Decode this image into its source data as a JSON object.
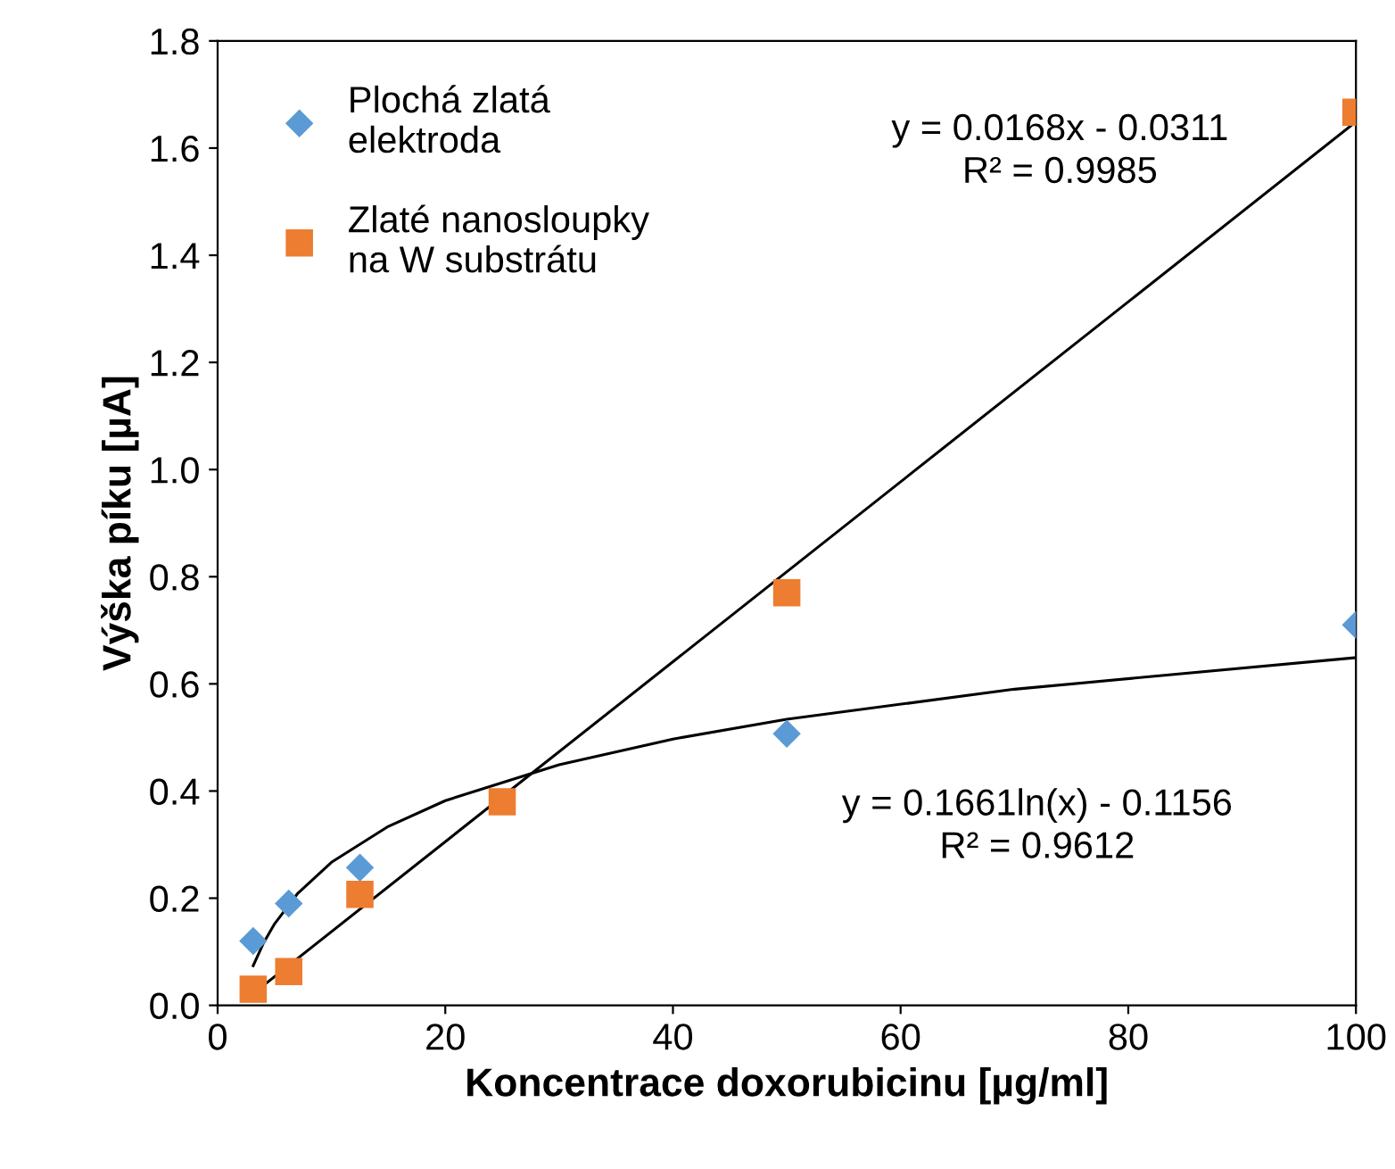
{
  "chart_data": {
    "type": "scatter",
    "xlabel": "Koncentrace doxorubicinu [µg/ml]",
    "ylabel": "Výška píku [µA]",
    "xlim": [
      0,
      100
    ],
    "xticks": [
      0,
      20,
      40,
      60,
      80,
      100
    ],
    "ylim": [
      0,
      1.8
    ],
    "yticks": [
      {
        "value": 0,
        "label": "0.0"
      },
      {
        "value": 0.2,
        "label": "0.2"
      },
      {
        "value": 0.4,
        "label": "0.4"
      },
      {
        "value": 0.6,
        "label": "0.6"
      },
      {
        "value": 0.8,
        "label": "0.8"
      },
      {
        "value": 1.0,
        "label": "1.0"
      },
      {
        "value": 1.2,
        "label": "1.2"
      },
      {
        "value": 1.4,
        "label": "1.4"
      },
      {
        "value": 1.6,
        "label": "1.6"
      },
      {
        "value": 1.8,
        "label": "1.8"
      }
    ],
    "grid": false,
    "legend": "top left",
    "series": [
      {
        "name": "Plochá zlatá\nelektroda",
        "marker": "diamond",
        "color": "#5b9bd5",
        "x": [
          3.125,
          6.25,
          12.5,
          50,
          100
        ],
        "values": [
          0.12,
          0.19,
          0.257,
          0.507,
          0.71
        ]
      },
      {
        "name": "Zlaté nanosloupky\nna W substrátu",
        "marker": "square",
        "color": "#ed7d31",
        "x": [
          3.125,
          6.25,
          12.5,
          25,
          50,
          100
        ],
        "values": [
          0.03,
          0.063,
          0.207,
          0.38,
          0.77,
          1.667
        ]
      },
      {
        "type": "line",
        "color": "#000000",
        "x": [
          3.125,
          100
        ],
        "values": [
          0.022,
          1.649
        ]
      },
      {
        "type": "line",
        "color": "#000000",
        "x": [
          3.125,
          4,
          5,
          7,
          10,
          15,
          20,
          30,
          40,
          50,
          70,
          100
        ],
        "values": [
          0.074,
          0.115,
          0.152,
          0.208,
          0.267,
          0.334,
          0.382,
          0.449,
          0.497,
          0.534,
          0.59,
          0.649
        ]
      }
    ],
    "annotations": [
      "y = 0.0168x - 0.0311\nR² = 0.9985",
      "y = 0.1661ln(x) - 0.1156\nR² = 0.9612"
    ]
  }
}
